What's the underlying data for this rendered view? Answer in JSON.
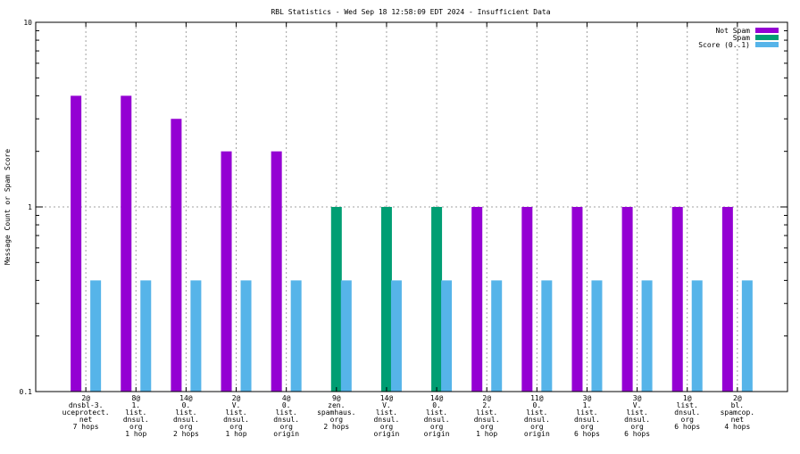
{
  "chart_data": {
    "type": "bar",
    "title": "RBL Statistics - Wed Sep 18 12:58:09 EDT 2024 - Insufficient Data",
    "ylabel": "Message Count or Spam Score",
    "xlabel": "",
    "yscale": "log",
    "ylim": [
      0.1,
      10
    ],
    "yticks": [
      "10",
      "1",
      "0.1"
    ],
    "grid": true,
    "legend_position": "top-right",
    "categories": [
      [
        "2@",
        "dnsbl-3.",
        "uceprotect.",
        "net",
        "7 hops"
      ],
      [
        "8@",
        "1.",
        "list.",
        "dnsul.",
        "org",
        "1 hop"
      ],
      [
        "14@",
        "0.",
        "list.",
        "dnsul.",
        "org",
        "2 hops"
      ],
      [
        "2@",
        "V.",
        "list.",
        "dnsul.",
        "org",
        "1 hop"
      ],
      [
        "4@",
        "0.",
        "list.",
        "dnsul.",
        "org",
        "origin"
      ],
      [
        "9@",
        "zen.",
        "spamhaus.",
        "org",
        "2 hops"
      ],
      [
        "14@",
        "V.",
        "list.",
        "dnsul.",
        "org",
        "origin"
      ],
      [
        "14@",
        "0.",
        "list.",
        "dnsul.",
        "org",
        "origin"
      ],
      [
        "2@",
        "2.",
        "list.",
        "dnsul.",
        "org",
        "1 hop"
      ],
      [
        "11@",
        "0.",
        "list.",
        "dnsul.",
        "org",
        "origin"
      ],
      [
        "3@",
        "1.",
        "list.",
        "dnsul.",
        "org",
        "6 hops"
      ],
      [
        "3@",
        "V.",
        "list.",
        "dnsul.",
        "org",
        "6 hops"
      ],
      [
        "1@",
        "list.",
        "dnsul.",
        "org",
        "6 hops"
      ],
      [
        "2@",
        "bl.",
        "spamcop.",
        "net",
        "4 hops"
      ]
    ],
    "series": [
      {
        "name": "Not Spam",
        "color": "#9400d3",
        "values": [
          4,
          4,
          3,
          2,
          2,
          null,
          null,
          null,
          1,
          1,
          1,
          1,
          1,
          1
        ]
      },
      {
        "name": "Spam",
        "color": "#009e73",
        "values": [
          null,
          null,
          null,
          null,
          null,
          1,
          1,
          1,
          null,
          null,
          null,
          null,
          null,
          null
        ]
      },
      {
        "name": "Score (0..1)",
        "color": "#56b4e9",
        "values": [
          0.4,
          0.4,
          0.4,
          0.4,
          0.4,
          0.4,
          0.4,
          0.4,
          0.4,
          0.4,
          0.4,
          0.4,
          0.4,
          0.4
        ]
      }
    ]
  }
}
